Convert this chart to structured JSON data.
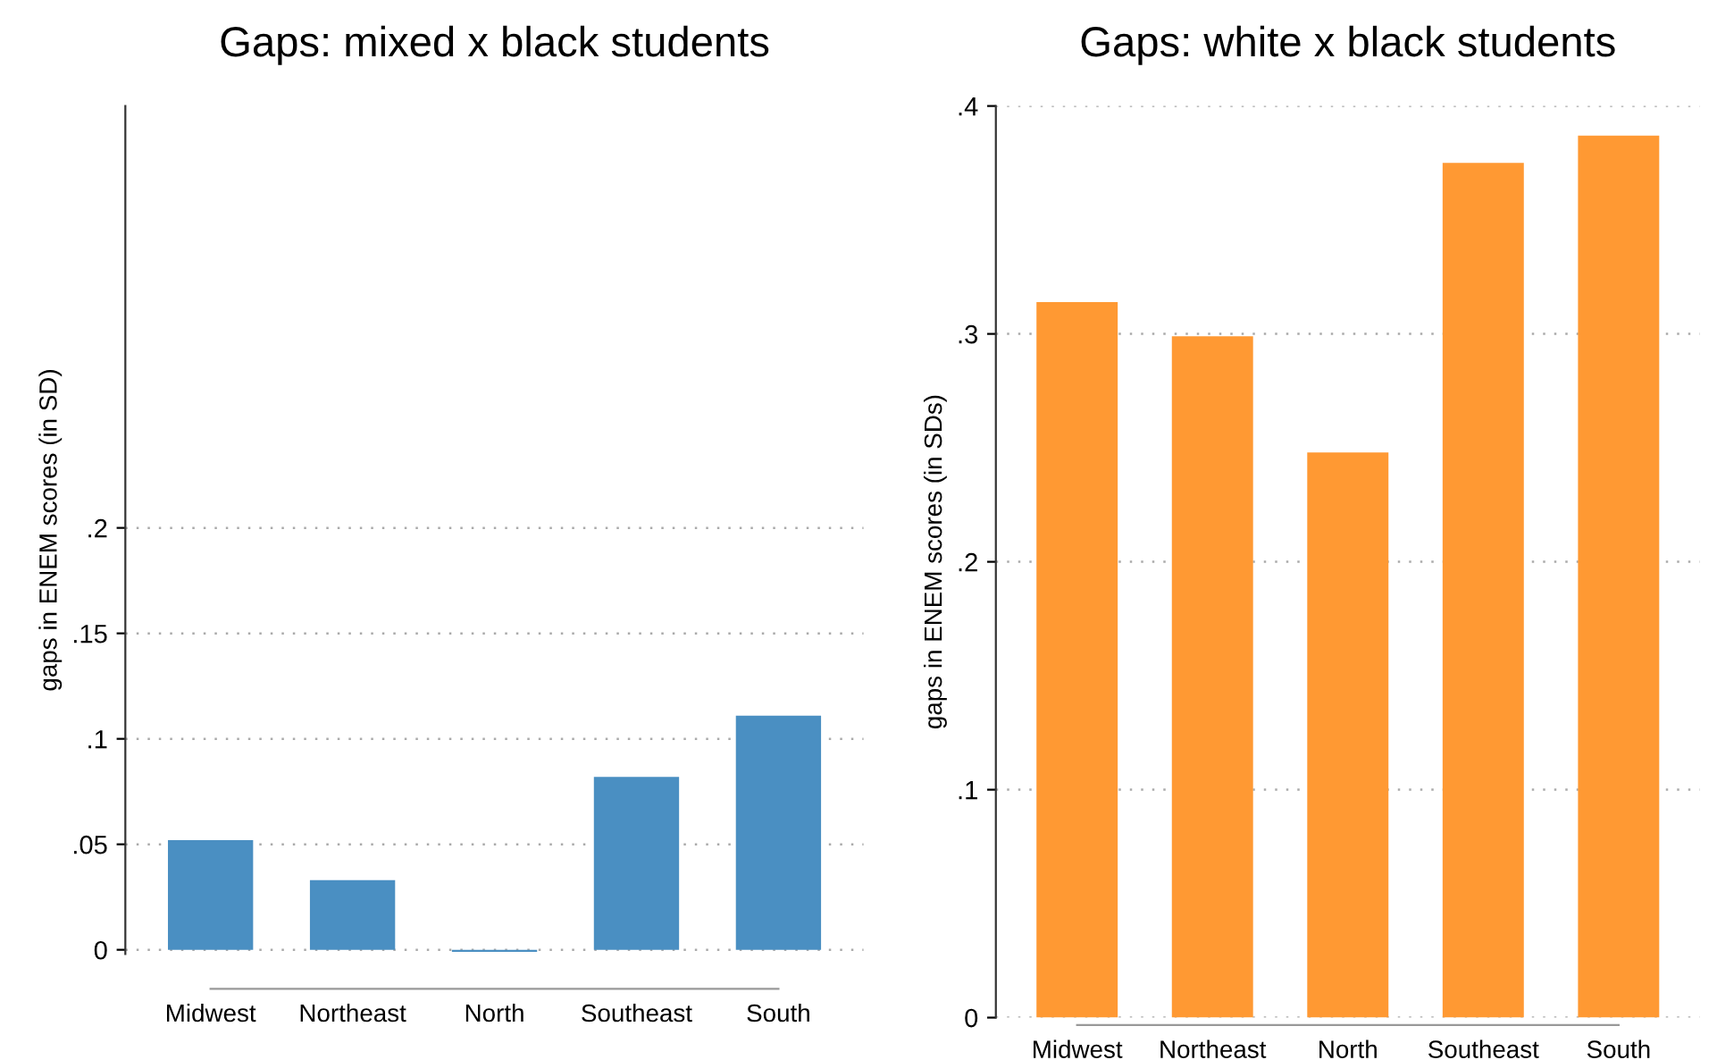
{
  "chart_data": [
    {
      "type": "bar",
      "title": "Gaps: mixed x black students",
      "ylabel": "gaps in ENEM scores (in SD)",
      "categories": [
        "Midwest",
        "Northeast",
        "North",
        "Southeast",
        "South"
      ],
      "values": [
        0.052,
        0.033,
        -0.001,
        0.082,
        0.111
      ],
      "color": "#4a8fc2",
      "ylim": [
        -0.002,
        0.4
      ],
      "yticks": [
        {
          "value": 0,
          "label": "0"
        },
        {
          "value": 0.05,
          "label": ".05"
        },
        {
          "value": 0.1,
          "label": ".1"
        },
        {
          "value": 0.15,
          "label": ".15"
        },
        {
          "value": 0.2,
          "label": ".2"
        }
      ],
      "grid": "y"
    },
    {
      "type": "bar",
      "title": "Gaps: white x black students",
      "ylabel": "gaps in ENEM scores (in SDs)",
      "categories": [
        "Midwest",
        "Northeast",
        "North",
        "Southeast",
        "South"
      ],
      "values": [
        0.314,
        0.299,
        0.248,
        0.375,
        0.387
      ],
      "color": "#ff9933",
      "ylim": [
        0,
        0.4
      ],
      "yticks": [
        {
          "value": 0,
          "label": "0"
        },
        {
          "value": 0.1,
          "label": ".1"
        },
        {
          "value": 0.2,
          "label": ".2"
        },
        {
          "value": 0.3,
          "label": ".3"
        },
        {
          "value": 0.4,
          "label": ".4"
        }
      ],
      "grid": "y"
    }
  ]
}
